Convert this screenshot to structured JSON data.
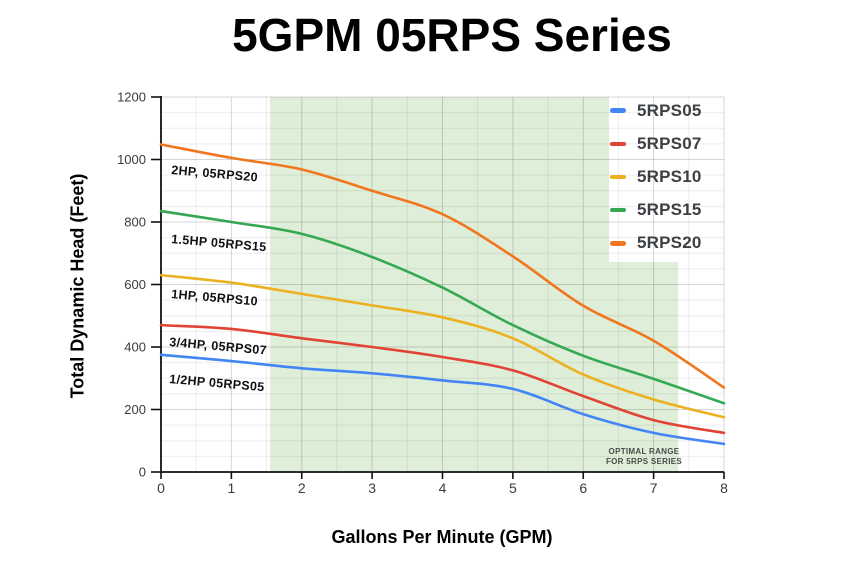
{
  "title": "5GPM 05RPS Series",
  "axes": {
    "x_label": "Gallons Per Minute (GPM)",
    "y_label": "Total Dynamic Head (Feet)"
  },
  "chart_data": {
    "type": "line",
    "title": "5GPM 05RPS Series",
    "xlabel": "Gallons Per Minute (GPM)",
    "ylabel": "Total Dynamic Head (Feet)",
    "xlim": [
      0,
      8
    ],
    "ylim": [
      0,
      1200
    ],
    "x_ticks": [
      0,
      1,
      2,
      3,
      4,
      5,
      6,
      7,
      8
    ],
    "y_ticks": [
      0,
      200,
      400,
      600,
      800,
      1000,
      1200
    ],
    "grid": {
      "x_minor_step": 0.5,
      "y_minor_step": 50,
      "x_major_step": 1,
      "y_major_step": 200
    },
    "legend_position": "top-right-inside",
    "x": [
      0,
      1,
      2,
      3,
      4,
      5,
      6,
      7,
      8
    ],
    "series": [
      {
        "name": "5RPS05",
        "color": "#4285f4",
        "values": [
          375,
          355,
          332,
          316,
          293,
          266,
          185,
          125,
          90
        ]
      },
      {
        "name": "5RPS07",
        "color": "#e14334",
        "values": [
          470,
          458,
          428,
          400,
          368,
          325,
          243,
          166,
          125
        ]
      },
      {
        "name": "5RPS10",
        "color": "#ecb121",
        "values": [
          630,
          606,
          570,
          533,
          495,
          428,
          312,
          232,
          175
        ]
      },
      {
        "name": "5RPS15",
        "color": "#34a853",
        "values": [
          835,
          800,
          762,
          688,
          590,
          470,
          372,
          298,
          220
        ]
      },
      {
        "name": "5RPS20",
        "color": "#f0771e",
        "values": [
          1048,
          1005,
          968,
          900,
          825,
          690,
          532,
          420,
          270
        ]
      }
    ],
    "optimal_range": {
      "x_start": 1.55,
      "x_end": 7.35,
      "fill": "#dfeed8",
      "label_line1": "OPTIMAL RANGE",
      "label_line2": "FOR 5RPS SERIES"
    },
    "annotations": [
      {
        "text": "2HP, 05RPS20",
        "x": 0.16,
        "y": 962
      },
      {
        "text": "1.5HP 05RPS15",
        "x": 0.16,
        "y": 741
      },
      {
        "text": "1HP, 05RPS10",
        "x": 0.16,
        "y": 565
      },
      {
        "text": "3/4HP, 05RPS07",
        "x": 0.13,
        "y": 412
      },
      {
        "text": "1/2HP 05RPS05",
        "x": 0.13,
        "y": 293
      }
    ]
  }
}
